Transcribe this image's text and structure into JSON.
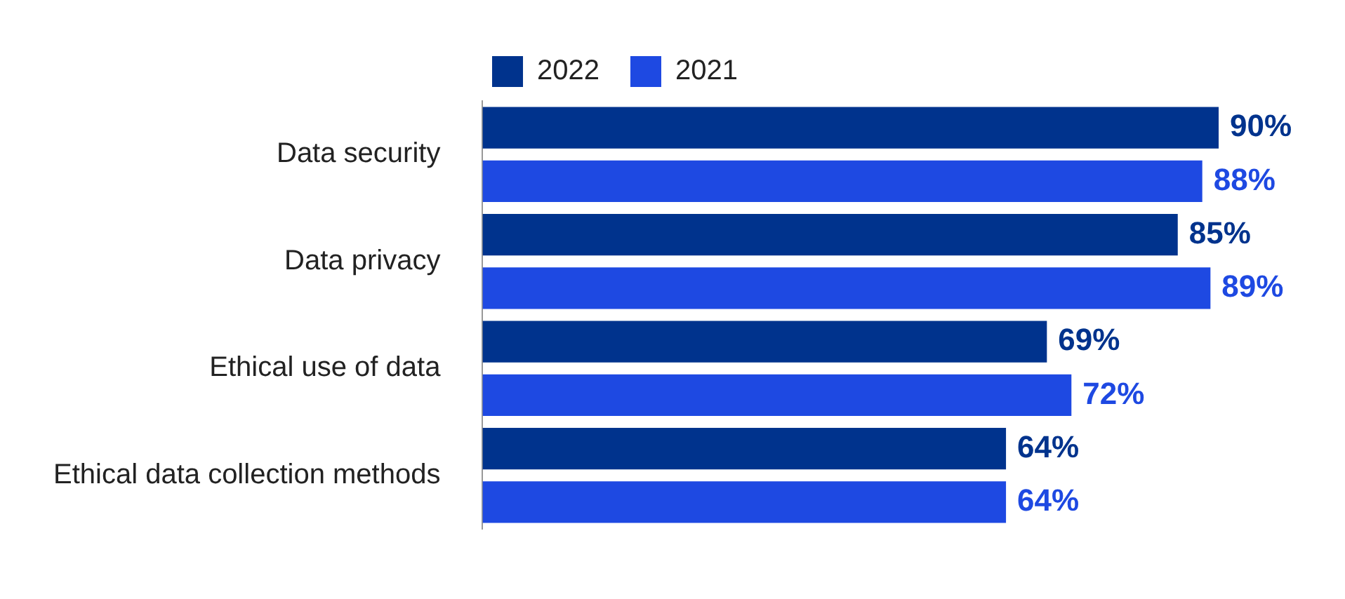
{
  "chart_data": {
    "type": "bar",
    "orientation": "horizontal",
    "categories": [
      "Data security",
      "Data privacy",
      "Ethical use of data",
      "Ethical data collection methods"
    ],
    "series": [
      {
        "name": "2022",
        "color": "#00338d",
        "values": [
          90,
          85,
          69,
          64
        ],
        "value_labels": [
          "90%",
          "85%",
          "69%",
          "64%"
        ]
      },
      {
        "name": "2021",
        "color": "#1e49e2",
        "values": [
          88,
          89,
          72,
          64
        ],
        "value_labels": [
          "88%",
          "89%",
          "72%",
          "64%"
        ]
      }
    ],
    "legend": "top"
  }
}
